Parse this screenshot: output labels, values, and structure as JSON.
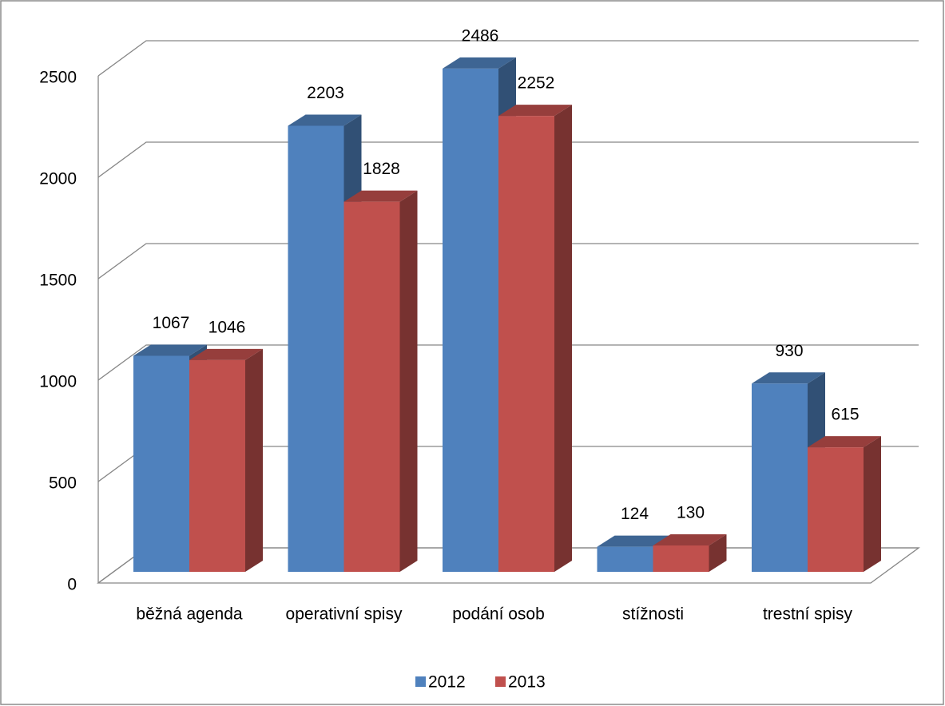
{
  "chart_data": {
    "type": "bar3d",
    "categories": [
      "běžná agenda",
      "operativní spisy",
      "podání osob",
      "stížnosti",
      "trestní spisy"
    ],
    "series": [
      {
        "name": "2012",
        "color": "#4f81bd",
        "values": [
          1067,
          2203,
          2486,
          124,
          930
        ]
      },
      {
        "name": "2013",
        "color": "#c0504d",
        "values": [
          1046,
          1828,
          2252,
          130,
          615
        ]
      }
    ],
    "ylim": [
      0,
      2500
    ],
    "yticks": [
      0,
      500,
      1000,
      1500,
      2000,
      2500
    ],
    "grid": true,
    "legend": "bottom"
  }
}
